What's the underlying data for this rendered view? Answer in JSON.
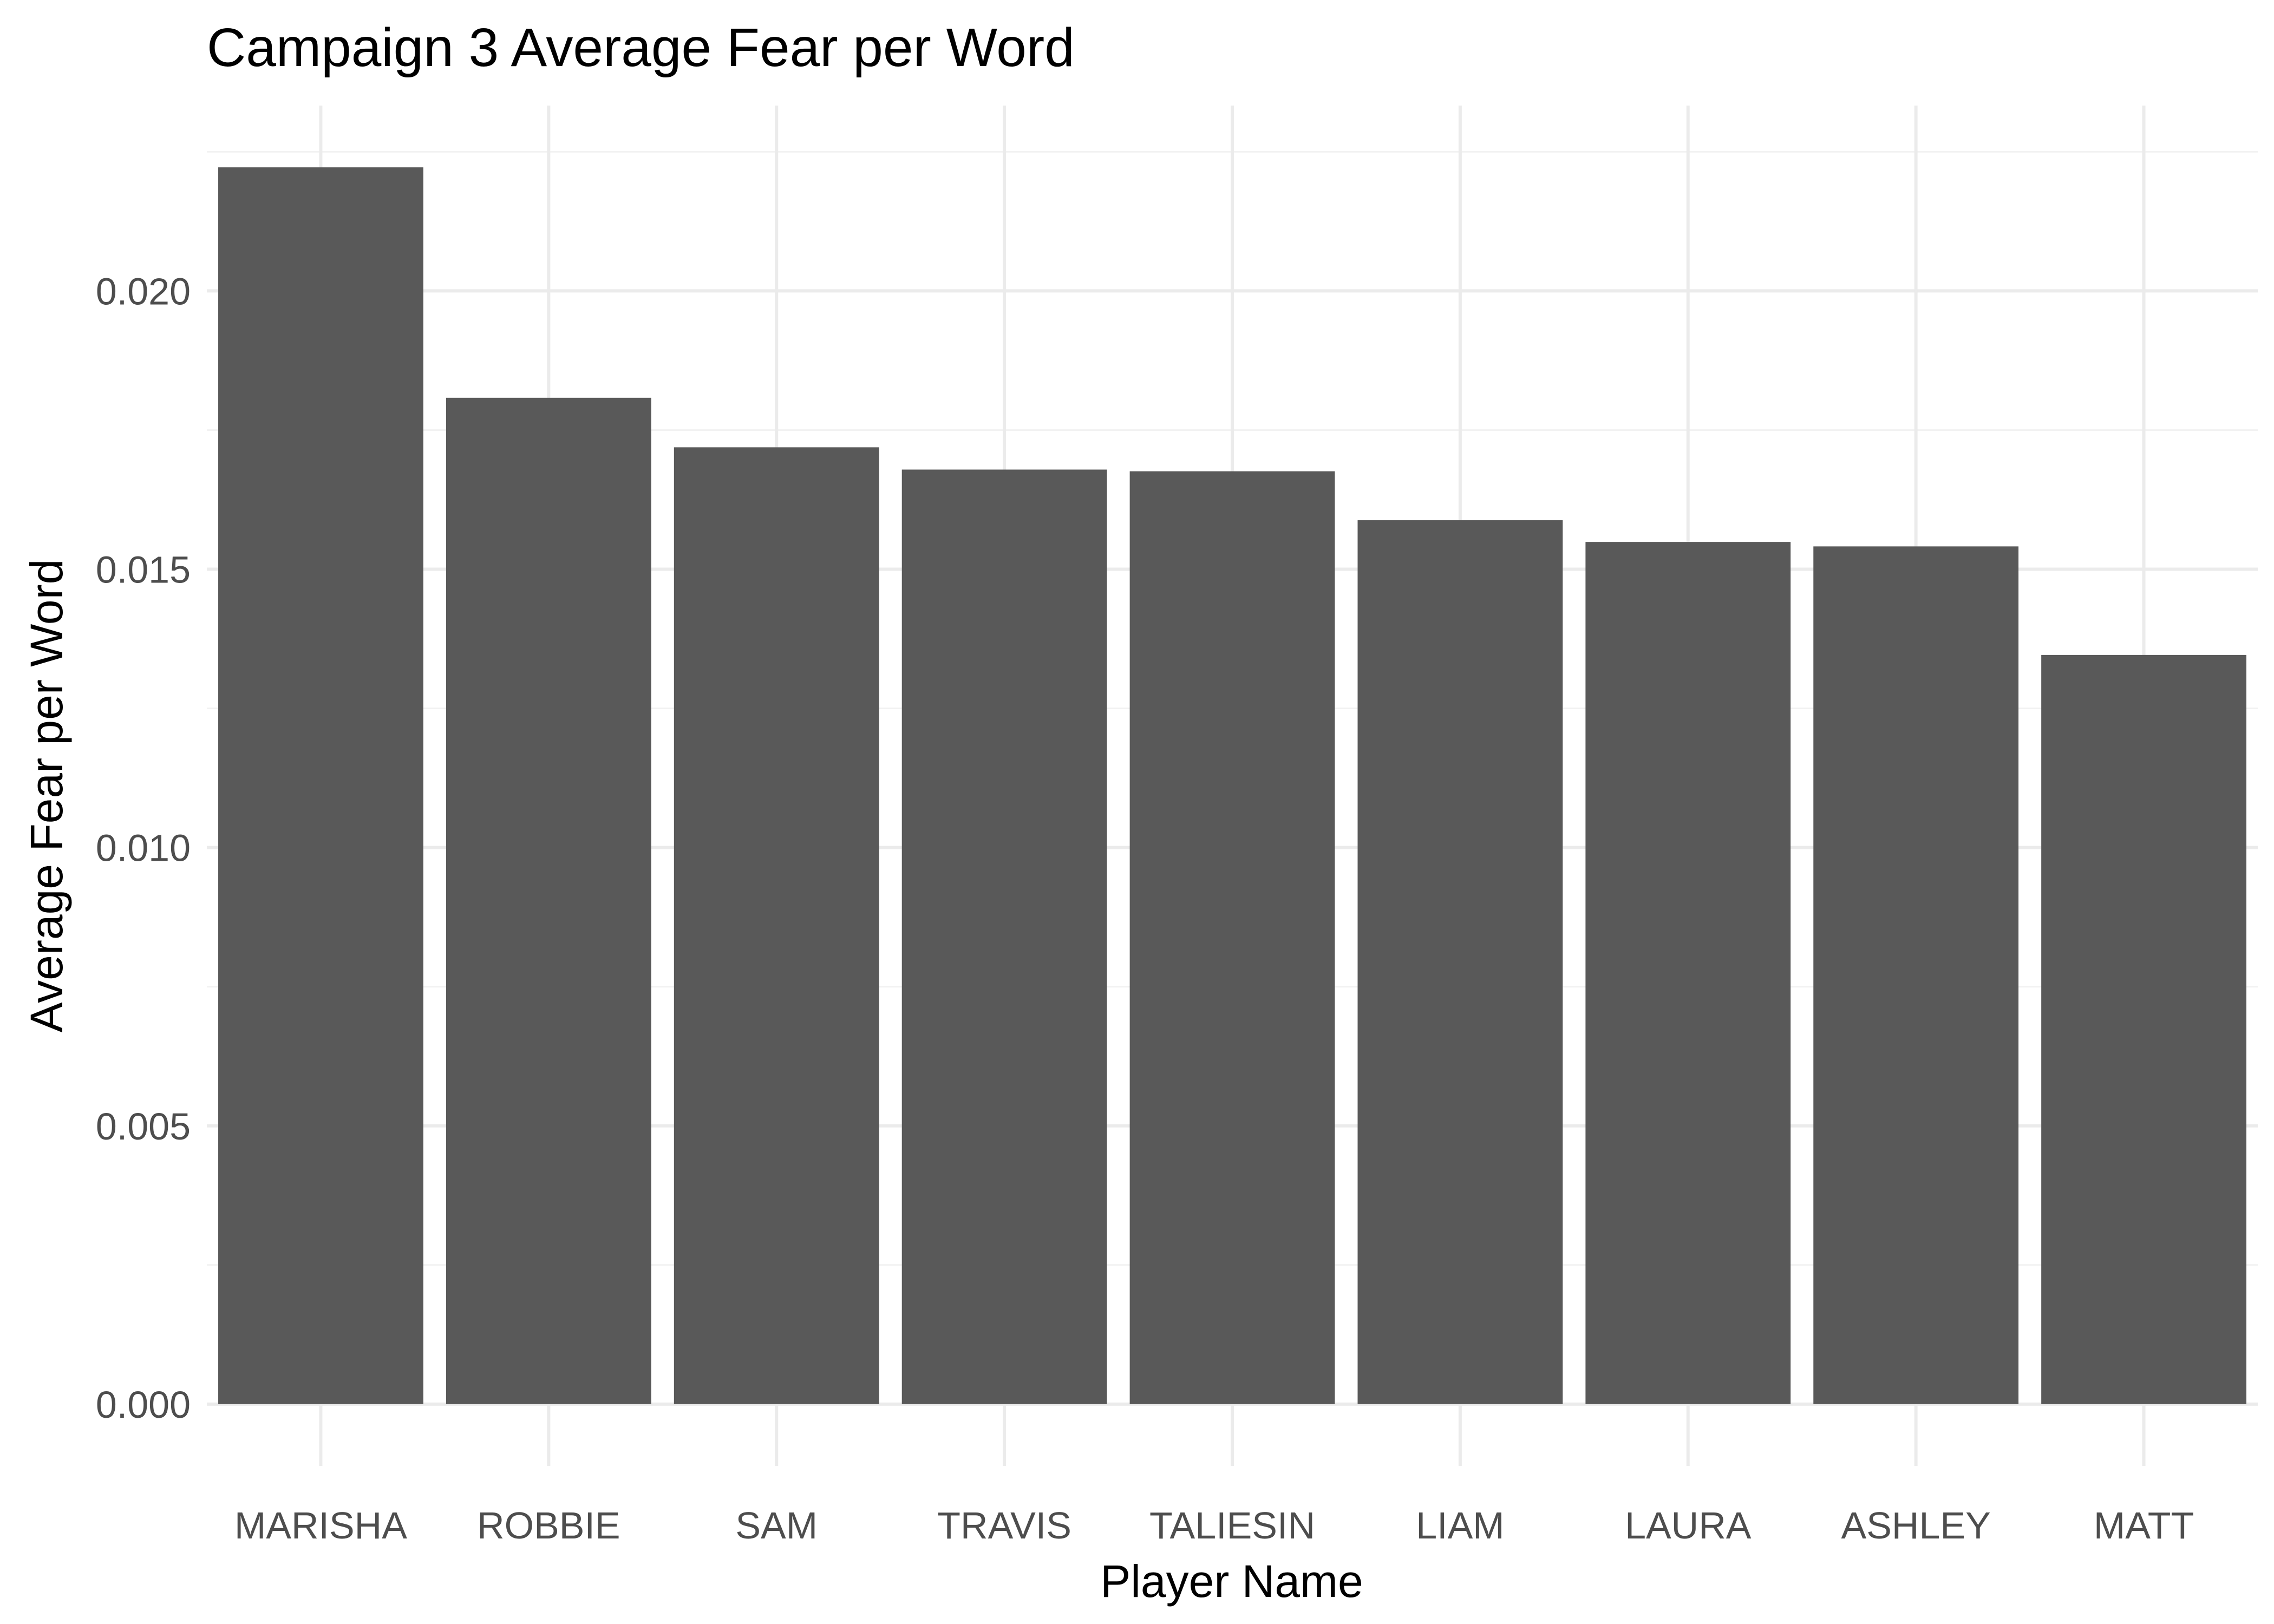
{
  "chart_data": {
    "type": "bar",
    "title": "Campaign 3 Average Fear per Word",
    "xlabel": "Player Name",
    "ylabel": "Average Fear per Word",
    "categories": [
      "MARISHA",
      "ROBBIE",
      "SAM",
      "TRAVIS",
      "TALIESIN",
      "LIAM",
      "LAURA",
      "ASHLEY",
      "MATT"
    ],
    "values": [
      0.02222,
      0.01808,
      0.01719,
      0.01679,
      0.01676,
      0.01588,
      0.01549,
      0.01541,
      0.01346
    ],
    "y_ticks": [
      "0.000",
      "0.005",
      "0.010",
      "0.015",
      "0.020"
    ],
    "y_tick_values": [
      0.0,
      0.005,
      0.01,
      0.015,
      0.02
    ],
    "ylim": [
      -0.00111,
      0.02333
    ],
    "bar_color": "#595959",
    "grid": true,
    "legend": "none"
  }
}
